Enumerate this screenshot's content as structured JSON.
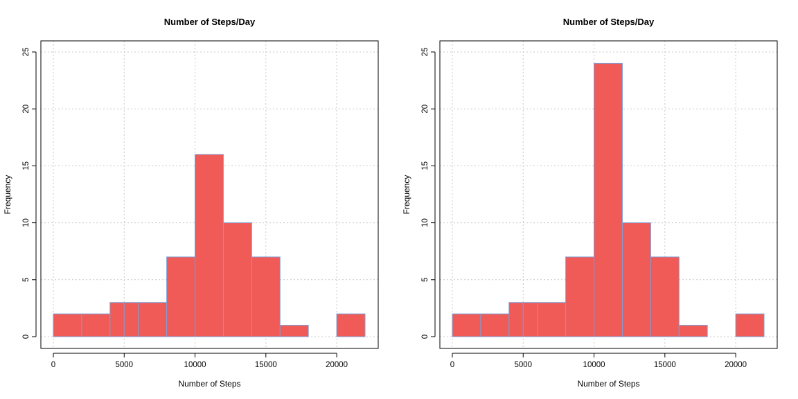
{
  "style": {
    "bar_fill": "#f05a57",
    "bar_border": "#7f9fd6",
    "grid_color": "#c8c8c8"
  },
  "chart_data": [
    {
      "type": "bar",
      "title": "Number of Steps/Day",
      "xlabel": "Number of Steps",
      "ylabel": "Frequency",
      "grid": true,
      "xlim": [
        0,
        22000
      ],
      "ylim": [
        0,
        25
      ],
      "x_ticks": [
        0,
        5000,
        10000,
        15000,
        20000
      ],
      "y_ticks": [
        0,
        5,
        10,
        15,
        20,
        25
      ],
      "bins": [
        {
          "start": 0,
          "end": 2000,
          "count": 2
        },
        {
          "start": 2000,
          "end": 4000,
          "count": 2
        },
        {
          "start": 4000,
          "end": 5000,
          "count": 3
        },
        {
          "start": 5000,
          "end": 6000,
          "count": 3
        },
        {
          "start": 6000,
          "end": 8000,
          "count": 3
        },
        {
          "start": 8000,
          "end": 10000,
          "count": 7
        },
        {
          "start": 10000,
          "end": 12000,
          "count": 16
        },
        {
          "start": 12000,
          "end": 14000,
          "count": 10
        },
        {
          "start": 14000,
          "end": 16000,
          "count": 7
        },
        {
          "start": 16000,
          "end": 18000,
          "count": 1
        },
        {
          "start": 18000,
          "end": 20000,
          "count": 0
        },
        {
          "start": 20000,
          "end": 22000,
          "count": 2
        }
      ]
    },
    {
      "type": "bar",
      "title": "Number of Steps/Day",
      "xlabel": "Number of Steps",
      "ylabel": "Frequency",
      "grid": true,
      "xlim": [
        0,
        22000
      ],
      "ylim": [
        0,
        25
      ],
      "x_ticks": [
        0,
        5000,
        10000,
        15000,
        20000
      ],
      "y_ticks": [
        0,
        5,
        10,
        15,
        20,
        25
      ],
      "bins": [
        {
          "start": 0,
          "end": 2000,
          "count": 2
        },
        {
          "start": 2000,
          "end": 4000,
          "count": 2
        },
        {
          "start": 4000,
          "end": 5000,
          "count": 3
        },
        {
          "start": 5000,
          "end": 6000,
          "count": 3
        },
        {
          "start": 6000,
          "end": 8000,
          "count": 3
        },
        {
          "start": 8000,
          "end": 10000,
          "count": 7
        },
        {
          "start": 10000,
          "end": 12000,
          "count": 24
        },
        {
          "start": 12000,
          "end": 14000,
          "count": 10
        },
        {
          "start": 14000,
          "end": 16000,
          "count": 7
        },
        {
          "start": 16000,
          "end": 18000,
          "count": 1
        },
        {
          "start": 18000,
          "end": 20000,
          "count": 0
        },
        {
          "start": 20000,
          "end": 22000,
          "count": 2
        }
      ]
    }
  ]
}
